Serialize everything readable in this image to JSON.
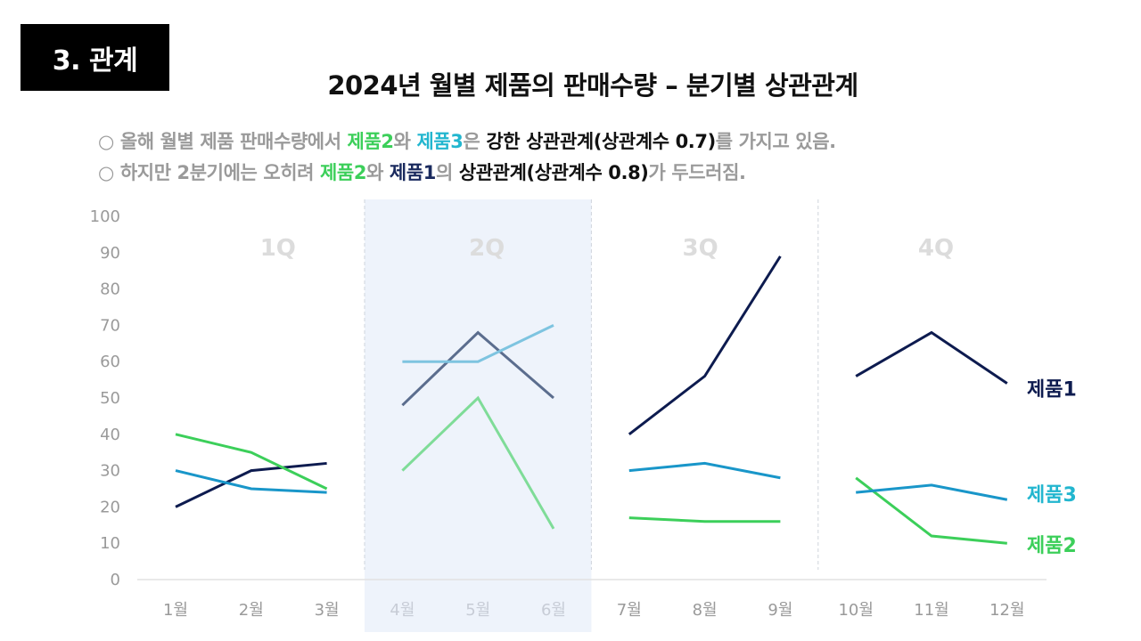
{
  "header": {
    "section_label": "3. 관계",
    "title": "2024년 월별 제품의 판매수량 – 분기별 상관관계"
  },
  "notes": [
    {
      "bullet": "○",
      "parts": [
        {
          "text": "올해 월별 제품 판매수량에서 ",
          "style": "gray"
        },
        {
          "text": "제품2",
          "style": "green"
        },
        {
          "text": "와 ",
          "style": "gray"
        },
        {
          "text": "제품3",
          "style": "cyan"
        },
        {
          "text": "은 ",
          "style": "gray"
        },
        {
          "text": "강한 상관관계(상관계수 0.7)",
          "style": "black"
        },
        {
          "text": "를 가지고 있음.",
          "style": "gray"
        }
      ]
    },
    {
      "bullet": "○",
      "parts": [
        {
          "text": "하지만 2분기에는 오히려 ",
          "style": "gray"
        },
        {
          "text": "제품2",
          "style": "green"
        },
        {
          "text": "와 ",
          "style": "gray"
        },
        {
          "text": "제품1",
          "style": "dark"
        },
        {
          "text": "의 ",
          "style": "gray"
        },
        {
          "text": "상관관계(상관계수 0.8)",
          "style": "black"
        },
        {
          "text": "가 두드러짐.",
          "style": "gray"
        }
      ]
    }
  ],
  "chart_data": {
    "type": "line",
    "categories": [
      "1월",
      "2월",
      "3월",
      "4월",
      "5월",
      "6월",
      "7월",
      "8월",
      "9월",
      "10월",
      "11월",
      "12월"
    ],
    "quarters": [
      {
        "label": "1Q",
        "months": [
          0,
          1,
          2
        ]
      },
      {
        "label": "2Q",
        "months": [
          3,
          4,
          5
        ],
        "highlighted": true
      },
      {
        "label": "3Q",
        "months": [
          6,
          7,
          8
        ]
      },
      {
        "label": "4Q",
        "months": [
          9,
          10,
          11
        ]
      }
    ],
    "ylim": [
      0,
      100
    ],
    "yticks": [
      0,
      10,
      20,
      30,
      40,
      50,
      60,
      70,
      80,
      90,
      100
    ],
    "segmented_by_quarter": true,
    "series": [
      {
        "name": "제품1",
        "color": "#0d1b4f",
        "highlight_color": "#5b6d8e",
        "values": [
          20,
          30,
          32,
          48,
          68,
          50,
          40,
          56,
          89,
          56,
          68,
          54
        ]
      },
      {
        "name": "제품2",
        "color": "#3ccf5a",
        "highlight_color": "#7fdc98",
        "values": [
          40,
          35,
          25,
          30,
          50,
          14,
          17,
          16,
          16,
          28,
          12,
          10
        ]
      },
      {
        "name": "제품3",
        "color": "#1996c9",
        "highlight_color": "#7ec4e0",
        "values": [
          30,
          25,
          24,
          60,
          60,
          70,
          30,
          32,
          28,
          24,
          26,
          22
        ]
      }
    ],
    "legend": [
      {
        "name": "제품1",
        "color": "#0d1b4f"
      },
      {
        "name": "제품3",
        "color": "#22b6cf"
      },
      {
        "name": "제품2",
        "color": "#3ccf5a"
      }
    ]
  }
}
